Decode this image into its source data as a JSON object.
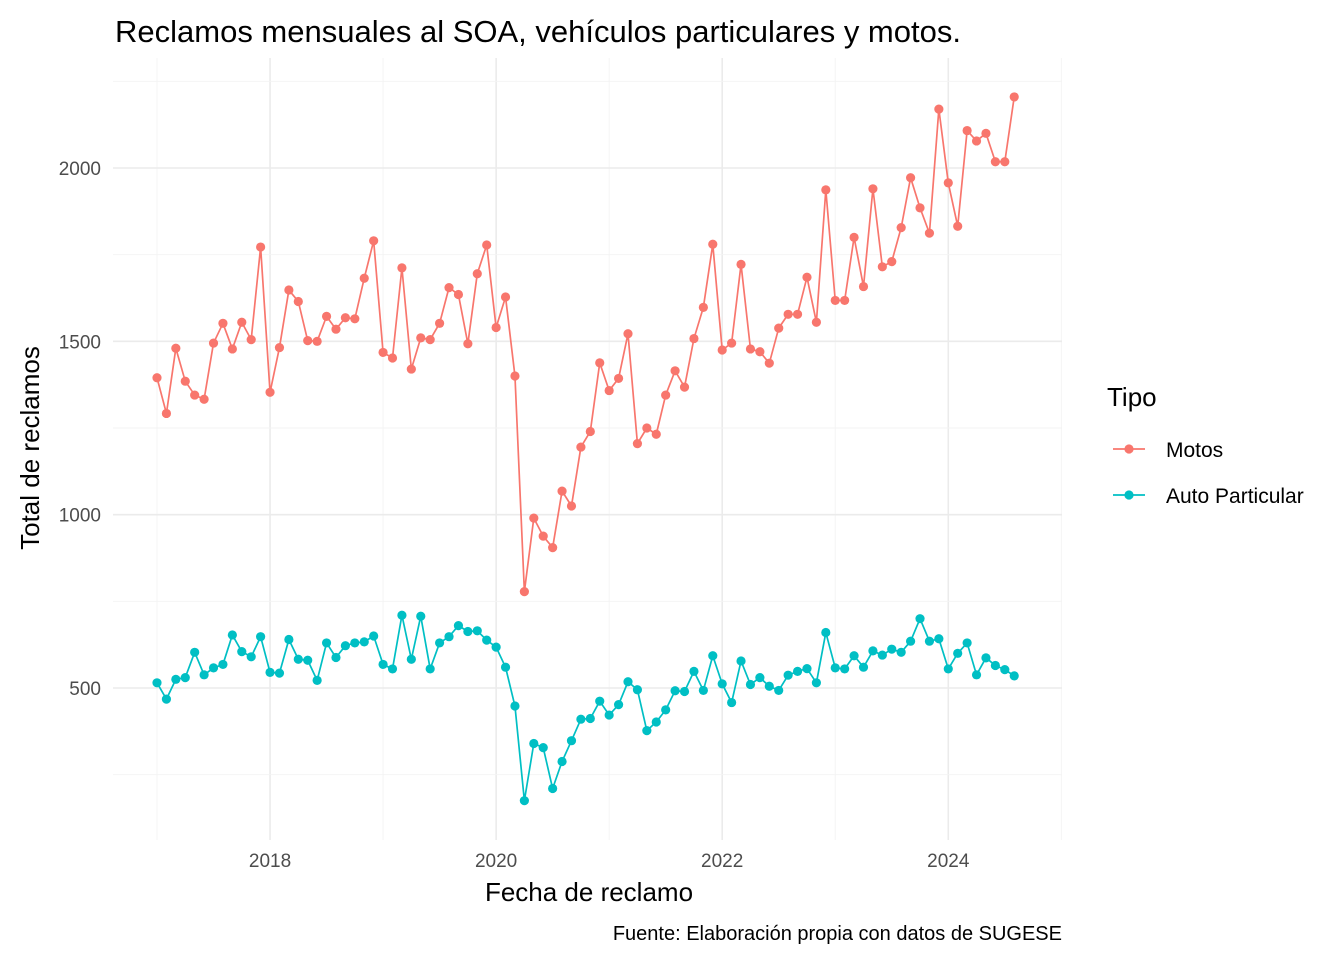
{
  "chart_data": {
    "type": "line",
    "title": "Reclamos mensuales al SOA, vehículos particulares y motos.",
    "xlabel": "Fecha de reclamo",
    "ylabel": "Total de reclamos",
    "caption": "Fuente: Elaboración propia con datos de SUGESE",
    "legend_title": "Tipo",
    "legend_position": "right",
    "grid": true,
    "x_start": "2017-01",
    "x_end": "2024-08",
    "x_ticks": [
      "2018",
      "2020",
      "2022",
      "2024"
    ],
    "y_ticks": [
      500,
      1000,
      1500,
      2000
    ],
    "ylim": [
      175,
      2225
    ],
    "series": [
      {
        "name": "Motos",
        "color": "#F8766D",
        "values": [
          1395,
          1292,
          1480,
          1385,
          1345,
          1333,
          1495,
          1552,
          1478,
          1555,
          1505,
          1772,
          1353,
          1482,
          1648,
          1615,
          1502,
          1500,
          1572,
          1535,
          1568,
          1565,
          1682,
          1790,
          1468,
          1452,
          1712,
          1420,
          1510,
          1505,
          1552,
          1655,
          1635,
          1493,
          1695,
          1778,
          1540,
          1628,
          1400,
          778,
          990,
          938,
          905,
          1068,
          1025,
          1195,
          1240,
          1438,
          1358,
          1393,
          1522,
          1205,
          1250,
          1232,
          1345,
          1415,
          1368,
          1508,
          1598,
          1780,
          1475,
          1495,
          1722,
          1478,
          1470,
          1437,
          1538,
          1578,
          1578,
          1685,
          1555,
          1937,
          1618,
          1618,
          1800,
          1658,
          1940,
          1715,
          1730,
          1828,
          1972,
          1885,
          1812,
          2170,
          1957,
          1832,
          2108,
          2078,
          2100,
          2018,
          2018,
          2205
        ]
      },
      {
        "name": "Auto Particular",
        "color": "#00BFC4",
        "values": [
          515,
          468,
          525,
          530,
          603,
          538,
          558,
          568,
          653,
          605,
          590,
          648,
          545,
          543,
          640,
          583,
          580,
          522,
          630,
          588,
          622,
          630,
          633,
          650,
          568,
          555,
          710,
          583,
          707,
          555,
          630,
          648,
          680,
          663,
          665,
          638,
          618,
          560,
          448,
          175,
          340,
          328,
          210,
          288,
          348,
          410,
          412,
          462,
          422,
          452,
          518,
          495,
          377,
          402,
          437,
          492,
          490,
          548,
          493,
          593,
          512,
          458,
          578,
          510,
          530,
          505,
          493,
          537,
          548,
          556,
          515,
          660,
          558,
          555,
          593,
          560,
          607,
          595,
          612,
          603,
          635,
          700,
          635,
          642,
          555,
          600,
          630,
          538,
          587,
          565,
          553,
          535
        ]
      }
    ]
  }
}
